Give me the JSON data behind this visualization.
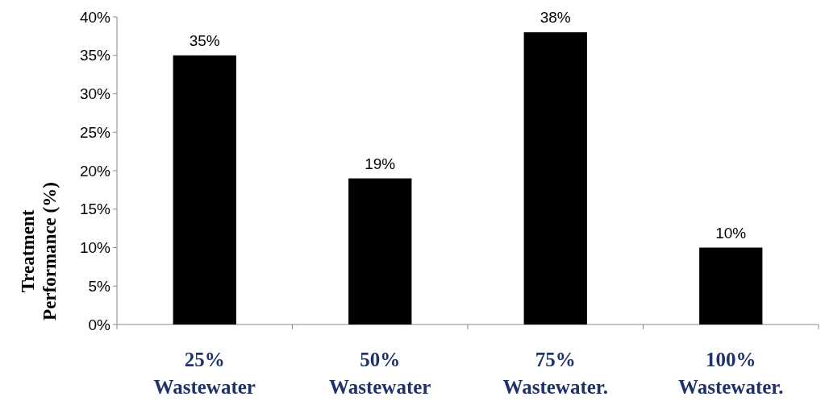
{
  "chart_data": {
    "type": "bar",
    "ylabel": "Treatment Performance (%)",
    "categories": [
      "25% Wastewater",
      "50% Wastewater",
      "75% Wastewater.",
      "100% Wastewater."
    ],
    "values": [
      35,
      19,
      38,
      10
    ],
    "color": "#000000",
    "value_labels": [
      "35%",
      "19%",
      "38%",
      "10%"
    ],
    "ylim": [
      0,
      40
    ],
    "yticks": [
      {
        "value": 0,
        "label": "0%"
      },
      {
        "value": 5,
        "label": "5%"
      },
      {
        "value": 10,
        "label": "10%"
      },
      {
        "value": 15,
        "label": "15%"
      },
      {
        "value": 20,
        "label": "20%"
      },
      {
        "value": 25,
        "label": "25%"
      },
      {
        "value": 30,
        "label": "30%"
      },
      {
        "value": 35,
        "label": "35%"
      },
      {
        "value": 40,
        "label": "40%"
      }
    ],
    "grid": false
  }
}
